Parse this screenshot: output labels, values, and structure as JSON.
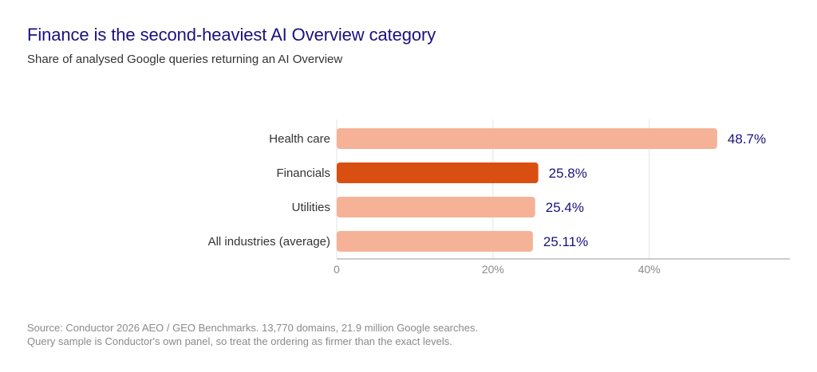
{
  "chart_data": {
    "type": "bar",
    "orientation": "horizontal",
    "title": "Finance is the second-heaviest AI Overview category",
    "subtitle": "Share of analysed Google queries returning an AI Overview",
    "categories": [
      "Health care",
      "Financials",
      "Utilities",
      "All industries (average)"
    ],
    "values": [
      48.7,
      25.8,
      25.4,
      25.11
    ],
    "value_labels": [
      "48.7%",
      "25.8%",
      "25.4%",
      "25.11%"
    ],
    "highlight_index": 1,
    "xlim": [
      0,
      58
    ],
    "xticks": [
      0,
      20,
      40
    ],
    "xtick_labels": [
      "0",
      "20%",
      "40%"
    ],
    "grid": true,
    "xlabel": "",
    "ylabel": "",
    "colors": {
      "bar": "#f5b297",
      "highlight": "#d94f11",
      "value_text": "#1a1280",
      "title": "#1a1280"
    }
  },
  "source": {
    "line1": "Source: Conductor 2026 AEO / GEO Benchmarks. 13,770 domains, 21.9 million Google searches.",
    "line2": "Query sample is Conductor's own panel, so treat the ordering as firmer than the exact levels."
  }
}
